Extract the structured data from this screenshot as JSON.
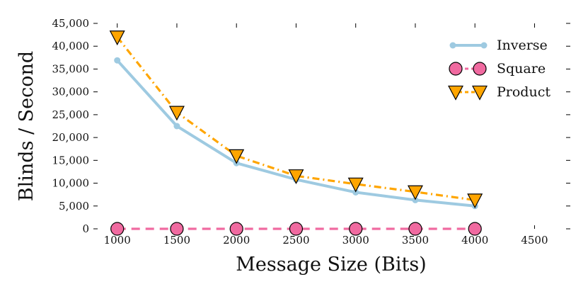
{
  "chart_data": {
    "type": "line",
    "title": "",
    "xlabel": "Message Size (Bits)",
    "ylabel": "Blinds / Second",
    "xlim": [
      800,
      4800
    ],
    "ylim": [
      0,
      45000
    ],
    "xticks": [
      1000,
      1500,
      2000,
      2500,
      3000,
      3500,
      4000,
      4500
    ],
    "xtick_labels": [
      "1000",
      "1500",
      "2000",
      "2500",
      "3000",
      "3500",
      "4000",
      "4500"
    ],
    "yticks": [
      0,
      5000,
      10000,
      15000,
      20000,
      25000,
      30000,
      35000,
      40000,
      45000
    ],
    "ytick_labels": [
      "0",
      "5,000",
      "10,000",
      "15,000",
      "20,000",
      "25,000",
      "30,000",
      "35,000",
      "40,000",
      "45,000"
    ],
    "grid": false,
    "legend_position": "top-right",
    "x": [
      1000,
      1500,
      2000,
      2500,
      3000,
      3500,
      4000
    ],
    "series": [
      {
        "name": "Inverse",
        "values": [
          36900,
          22500,
          14400,
          10800,
          8000,
          6300,
          5000
        ],
        "color": "#9ecae1",
        "line_style": "solid",
        "marker": "circle"
      },
      {
        "name": "Square",
        "values": [
          0,
          0,
          0,
          0,
          0,
          0,
          0
        ],
        "color": "#f06aa0",
        "line_style": "dashed",
        "marker": "circle"
      },
      {
        "name": "Product",
        "values": [
          42000,
          25500,
          16000,
          11600,
          9800,
          8100,
          6300
        ],
        "color": "#ffa500",
        "line_style": "dash-dot",
        "marker": "triangle-down"
      }
    ]
  }
}
